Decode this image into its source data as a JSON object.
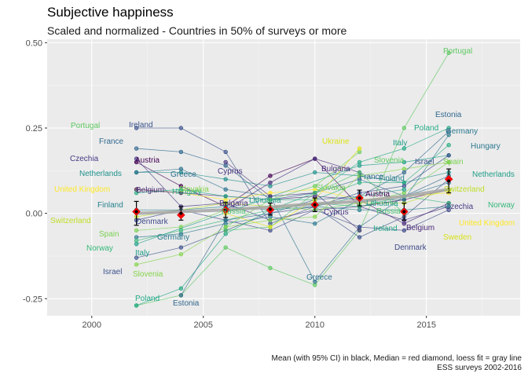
{
  "chart_data": {
    "type": "scatter",
    "title": "Subjective happiness",
    "subtitle": "Scaled and normalized - Countries in 50% of surveys or more",
    "caption": [
      "Mean (with 95% CI) in black, Median = red diamond, loess fit = gray line",
      "ESS surveys 2002-2016"
    ],
    "xlabel": "",
    "ylabel": "",
    "xlim": [
      1998,
      2019.2
    ],
    "ylim": [
      -0.3,
      0.51
    ],
    "x_ticks": [
      2000,
      2005,
      2010,
      2015
    ],
    "y_ticks": [
      -0.25,
      0.0,
      0.25,
      0.5
    ],
    "y_tick_labels": [
      "-0.25",
      "0.00",
      "0.25",
      "0.50"
    ],
    "grid": true,
    "legend": "none",
    "background": "#ebebeb",
    "survey_years": [
      2002,
      2004,
      2006,
      2008,
      2010,
      2012,
      2014,
      2016
    ],
    "countries": [
      {
        "name": "Portugal",
        "color": "#5ec962",
        "points": [
          [
            2002,
            -0.27
          ],
          [
            2004,
            -0.24
          ],
          [
            2006,
            -0.1
          ],
          [
            2008,
            -0.16
          ],
          [
            2010,
            -0.21
          ],
          [
            2012,
            -0.05
          ],
          [
            2014,
            0.25
          ],
          [
            2016,
            0.47
          ]
        ]
      },
      {
        "name": "Ireland",
        "color": "#3b528b",
        "points": [
          [
            2002,
            0.25
          ],
          [
            2004,
            0.25
          ],
          [
            2006,
            0.18
          ],
          [
            2008,
            -0.03
          ],
          [
            2010,
            0.02
          ],
          [
            2012,
            -0.07
          ],
          [
            2014,
            -0.01
          ],
          [
            2016,
            0.1
          ]
        ]
      },
      {
        "name": "France",
        "color": "#31688e",
        "points": [
          [
            2002,
            0.19
          ],
          [
            2004,
            0.18
          ],
          [
            2006,
            0.14
          ],
          [
            2008,
            0.04
          ],
          [
            2010,
            0.06
          ],
          [
            2012,
            0.1
          ],
          [
            2014,
            0.05
          ],
          [
            2016,
            0.11
          ]
        ]
      },
      {
        "name": "Austria",
        "color": "#440154",
        "points": [
          [
            2002,
            0.15
          ],
          [
            2004,
            0.08
          ],
          [
            2006,
            0.02
          ],
          [
            2008,
            0.11
          ],
          [
            2010,
            0.16
          ],
          [
            2012,
            0.02
          ],
          [
            2014,
            0.04
          ],
          [
            2016,
            0.07
          ]
        ]
      },
      {
        "name": "Czechia",
        "color": "#443983",
        "points": [
          [
            2002,
            0.16
          ],
          [
            2004,
            0.02
          ],
          [
            2006,
            0.03
          ],
          [
            2008,
            -0.02
          ],
          [
            2010,
            0.01
          ],
          [
            2012,
            0.02
          ],
          [
            2014,
            -0.02
          ],
          [
            2016,
            0.02
          ]
        ]
      },
      {
        "name": "Netherlands",
        "color": "#21918c",
        "points": [
          [
            2002,
            0.12
          ],
          [
            2004,
            0.12
          ],
          [
            2006,
            0.1
          ],
          [
            2008,
            0.08
          ],
          [
            2010,
            0.12
          ],
          [
            2012,
            0.11
          ],
          [
            2014,
            0.09
          ],
          [
            2016,
            0.12
          ]
        ]
      },
      {
        "name": "Greece",
        "color": "#2c728e",
        "points": [
          [
            2002,
            0.12
          ],
          [
            2004,
            0.13
          ],
          [
            2006,
            0.07
          ],
          [
            2008,
            0.05
          ],
          [
            2010,
            -0.2
          ],
          [
            2012,
            -0.04
          ],
          [
            2014,
            0.05
          ],
          [
            2016,
            0.09
          ]
        ]
      },
      {
        "name": "United Kingdom",
        "color": "#fde725",
        "points": [
          [
            2002,
            0.07
          ],
          [
            2004,
            0.06
          ],
          [
            2006,
            0.04
          ],
          [
            2008,
            0.06
          ],
          [
            2010,
            0.07
          ],
          [
            2012,
            0.04
          ],
          [
            2014,
            0.05
          ],
          [
            2016,
            0.06
          ]
        ]
      },
      {
        "name": "Belgium",
        "color": "#482878",
        "points": [
          [
            2002,
            0.07
          ],
          [
            2004,
            0.06
          ],
          [
            2006,
            0.05
          ],
          [
            2008,
            0.04
          ],
          [
            2010,
            0.05
          ],
          [
            2012,
            0.04
          ],
          [
            2014,
            -0.03
          ],
          [
            2016,
            0.03
          ]
        ]
      },
      {
        "name": "Hungary",
        "color": "#27ad81",
        "points": [
          [
            2002,
            0.06
          ],
          [
            2004,
            0.07
          ],
          [
            2006,
            0.05
          ],
          [
            2008,
            0.04
          ],
          [
            2010,
            0.04
          ],
          [
            2012,
            0.09
          ],
          [
            2014,
            0.09
          ],
          [
            2016,
            0.2
          ]
        ]
      },
      {
        "name": "Finland",
        "color": "#26828e",
        "points": [
          [
            2002,
            0.01
          ],
          [
            2004,
            0.01
          ],
          [
            2006,
            0.02
          ],
          [
            2008,
            0.01
          ],
          [
            2010,
            0.02
          ],
          [
            2012,
            0.01
          ],
          [
            2014,
            0.01
          ],
          [
            2016,
            0.02
          ]
        ]
      },
      {
        "name": "Switzerland",
        "color": "#bddf26",
        "points": [
          [
            2002,
            -0.01
          ],
          [
            2004,
            0.01
          ],
          [
            2006,
            0.03
          ],
          [
            2008,
            0.02
          ],
          [
            2010,
            0.03
          ],
          [
            2012,
            0.03
          ],
          [
            2014,
            0.03
          ],
          [
            2016,
            0.07
          ]
        ]
      },
      {
        "name": "Denmark",
        "color": "#3e4a89",
        "points": [
          [
            2002,
            -0.02
          ],
          [
            2004,
            0.01
          ],
          [
            2006,
            -0.02
          ],
          [
            2008,
            -0.05
          ],
          [
            2010,
            0.01
          ],
          [
            2012,
            -0.04
          ],
          [
            2014,
            -0.05
          ],
          [
            2016,
            0.01
          ]
        ]
      },
      {
        "name": "Spain",
        "color": "#7ad151",
        "points": [
          [
            2002,
            -0.05
          ],
          [
            2004,
            -0.04
          ],
          [
            2006,
            0.01
          ],
          [
            2008,
            0.02
          ],
          [
            2010,
            0.01
          ],
          [
            2012,
            0.03
          ],
          [
            2014,
            0.06
          ],
          [
            2016,
            0.15
          ]
        ]
      },
      {
        "name": "Germany",
        "color": "#2a788e",
        "points": [
          [
            2002,
            -0.07
          ],
          [
            2004,
            -0.06
          ],
          [
            2006,
            -0.03
          ],
          [
            2008,
            -0.01
          ],
          [
            2010,
            -0.03
          ],
          [
            2012,
            0.04
          ],
          [
            2014,
            0.04
          ],
          [
            2016,
            0.23
          ]
        ]
      },
      {
        "name": "Norway",
        "color": "#35b779",
        "points": [
          [
            2002,
            -0.08
          ],
          [
            2004,
            -0.05
          ],
          [
            2006,
            -0.02
          ],
          [
            2008,
            0.01
          ],
          [
            2010,
            0.03
          ],
          [
            2012,
            0.02
          ],
          [
            2014,
            0.05
          ],
          [
            2016,
            0.03
          ]
        ]
      },
      {
        "name": "Italy",
        "color": "#1f9e89",
        "points": [
          [
            2002,
            -0.09
          ],
          [
            2012,
            0.14
          ],
          [
            2014,
            0.15
          ],
          [
            2016,
            0.17
          ]
        ]
      },
      {
        "name": "Israel",
        "color": "#3b528b",
        "points": [
          [
            2002,
            -0.13
          ],
          [
            2004,
            -0.1
          ],
          [
            2006,
            -0.05
          ],
          [
            2008,
            0.0
          ],
          [
            2010,
            0.02
          ],
          [
            2012,
            0.06
          ],
          [
            2014,
            0.08
          ],
          [
            2016,
            0.17
          ]
        ]
      },
      {
        "name": "Slovenia",
        "color": "#84d44b",
        "points": [
          [
            2002,
            -0.15
          ],
          [
            2004,
            -0.12
          ],
          [
            2006,
            -0.04
          ],
          [
            2008,
            -0.02
          ],
          [
            2010,
            -0.01
          ],
          [
            2012,
            0.11
          ],
          [
            2014,
            0.13
          ],
          [
            2016,
            0.15
          ]
        ]
      },
      {
        "name": "Poland",
        "color": "#22a884",
        "points": [
          [
            2002,
            -0.27
          ],
          [
            2004,
            -0.22
          ],
          [
            2006,
            -0.06
          ],
          [
            2008,
            0.01
          ],
          [
            2010,
            0.06
          ],
          [
            2012,
            0.15
          ],
          [
            2014,
            0.19
          ],
          [
            2016,
            0.25
          ]
        ]
      },
      {
        "name": "Estonia",
        "color": "#31688e",
        "points": [
          [
            2004,
            -0.24
          ],
          [
            2006,
            -0.02
          ],
          [
            2008,
            0.0
          ],
          [
            2010,
            0.04
          ],
          [
            2012,
            0.05
          ],
          [
            2014,
            0.12
          ],
          [
            2016,
            0.24
          ]
        ]
      },
      {
        "name": "Bulgaria",
        "color": "#472d7b",
        "points": [
          [
            2006,
            0.01
          ],
          [
            2008,
            0.09
          ],
          [
            2010,
            0.16
          ],
          [
            2012,
            0.12
          ]
        ]
      },
      {
        "name": "Cyprus",
        "color": "#46337e",
        "points": [
          [
            2006,
            0.15
          ],
          [
            2008,
            0.05
          ],
          [
            2010,
            0.06
          ],
          [
            2012,
            -0.05
          ]
        ]
      },
      {
        "name": "Russia",
        "color": "#4ac16d",
        "points": [
          [
            2006,
            -0.05
          ],
          [
            2008,
            -0.04
          ],
          [
            2010,
            0.06
          ],
          [
            2012,
            0.12
          ],
          [
            2014,
            0.0
          ]
        ]
      },
      {
        "name": "Slovakia",
        "color": "#6ccd5a",
        "points": [
          [
            2006,
            -0.04
          ],
          [
            2008,
            0.04
          ],
          [
            2010,
            0.08
          ],
          [
            2012,
            0.18
          ]
        ]
      },
      {
        "name": "Lithuania",
        "color": "#1fa188",
        "points": [
          [
            2010,
            0.02
          ],
          [
            2012,
            0.05
          ],
          [
            2014,
            0.07
          ]
        ]
      },
      {
        "name": "Ukraine",
        "color": "#dde318",
        "points": [
          [
            2006,
            0.0
          ],
          [
            2008,
            -0.04
          ],
          [
            2010,
            0.04
          ],
          [
            2012,
            0.19
          ]
        ]
      }
    ],
    "point_labels": [
      {
        "text": "Portugal",
        "color": "#5ec962"
      },
      {
        "text": "Ireland",
        "color": "#3b528b"
      },
      {
        "text": "France",
        "color": "#31688e"
      },
      {
        "text": "Austria",
        "color": "#440154"
      },
      {
        "text": "Czechia",
        "color": "#443983"
      },
      {
        "text": "Greece",
        "color": "#2c728e"
      },
      {
        "text": "Netherlands",
        "color": "#21918c"
      },
      {
        "text": "United Kingdom",
        "color": "#fde725"
      },
      {
        "text": "Belgium",
        "color": "#482878"
      },
      {
        "text": "Hungary",
        "color": "#27ad81"
      },
      {
        "text": "Finland",
        "color": "#26828e"
      },
      {
        "text": "Switzerland",
        "color": "#bddf26"
      },
      {
        "text": "Denmark",
        "color": "#3e4a89"
      },
      {
        "text": "Spain",
        "color": "#7ad151"
      },
      {
        "text": "Germany",
        "color": "#2a788e"
      },
      {
        "text": "Norway",
        "color": "#35b779"
      },
      {
        "text": "Italy",
        "color": "#1f9e89"
      },
      {
        "text": "Israel",
        "color": "#3b528b"
      },
      {
        "text": "Slovenia",
        "color": "#84d44b"
      },
      {
        "text": "Poland",
        "color": "#22a884"
      },
      {
        "text": "Estonia",
        "color": "#31688e"
      },
      {
        "text": "Cyprus",
        "color": "#46337e"
      },
      {
        "text": "Bulgaria",
        "color": "#472d7b"
      },
      {
        "text": "Russia",
        "color": "#4ac16d"
      },
      {
        "text": "Slovakia",
        "color": "#84d44b"
      },
      {
        "text": "Lithuania",
        "color": "#1fa188"
      },
      {
        "text": "Greece",
        "color": "#2c728e"
      },
      {
        "text": "Bulgaria",
        "color": "#472d7b"
      },
      {
        "text": "Ukraine",
        "color": "#dde318"
      },
      {
        "text": "France",
        "color": "#31688e"
      },
      {
        "text": "Finland",
        "color": "#26828e"
      },
      {
        "text": "Austria",
        "color": "#440154"
      },
      {
        "text": "Cyprus",
        "color": "#46337e"
      },
      {
        "text": "Slovakia",
        "color": "#6ccd5a"
      },
      {
        "text": "Ireland",
        "color": "#22a884"
      },
      {
        "text": "Belgium",
        "color": "#482878"
      },
      {
        "text": "Denmark",
        "color": "#3e4a89"
      },
      {
        "text": "Russia",
        "color": "#4ac16d"
      },
      {
        "text": "Lithuania",
        "color": "#1fa188"
      },
      {
        "text": "Slovenia",
        "color": "#5ec962"
      },
      {
        "text": "Italy",
        "color": "#1f9e89"
      },
      {
        "text": "Israel",
        "color": "#3b528b"
      },
      {
        "text": "Estonia",
        "color": "#31688e"
      },
      {
        "text": "Poland",
        "color": "#22a884"
      },
      {
        "text": "Germany",
        "color": "#2a788e"
      },
      {
        "text": "Hungary",
        "color": "#2a788e"
      },
      {
        "text": "Spain",
        "color": "#7ad151"
      },
      {
        "text": "Netherlands",
        "color": "#1f9e89"
      },
      {
        "text": "Switzerland",
        "color": "#bddf26"
      },
      {
        "text": "Czechia",
        "color": "#443983"
      },
      {
        "text": "Norway",
        "color": "#35b779"
      },
      {
        "text": "United Kingdom",
        "color": "#fde725"
      },
      {
        "text": "Sweden",
        "color": "#d8e219"
      },
      {
        "text": "Portugal",
        "color": "#5ec962"
      }
    ],
    "summary": {
      "years": [
        2002,
        2004,
        2006,
        2008,
        2010,
        2012,
        2014,
        2016
      ],
      "mean": [
        0.005,
        0.0,
        0.01,
        0.012,
        0.025,
        0.045,
        0.005,
        0.095
      ],
      "ci_low": [
        -0.035,
        -0.02,
        -0.012,
        -0.005,
        0.005,
        0.022,
        -0.02,
        0.06
      ],
      "ci_high": [
        0.035,
        0.02,
        0.032,
        0.03,
        0.045,
        0.068,
        0.03,
        0.13
      ],
      "median": [
        0.005,
        -0.005,
        0.01,
        0.01,
        0.025,
        0.045,
        0.005,
        0.1
      ],
      "loess": [
        0.0,
        0.005,
        0.01,
        0.018,
        0.028,
        0.035,
        0.05,
        0.07
      ],
      "mean_color": "#000000",
      "median_color": "#ff0000",
      "loess_color": "#a6a6a6"
    }
  }
}
